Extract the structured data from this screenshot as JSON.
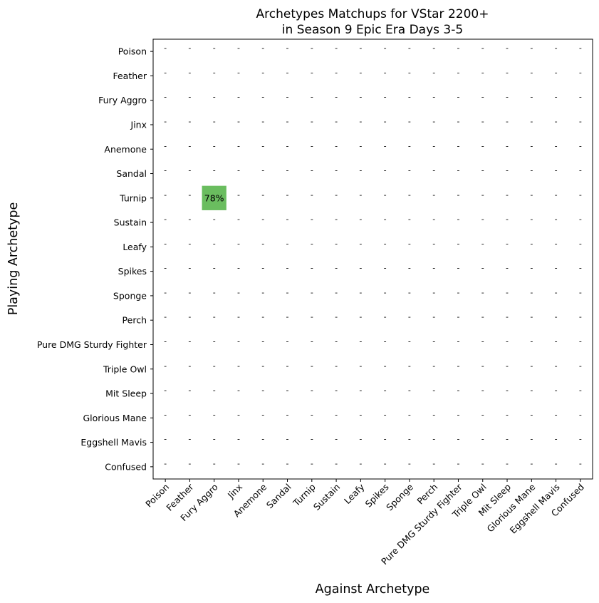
{
  "chart_data": {
    "type": "heatmap",
    "title": [
      "Archetypes Matchups for VStar 2200+",
      "in Season 9 Epic Era Days 3-5"
    ],
    "xlabel": "Against Archetype",
    "ylabel": "Playing Archetype",
    "x_categories": [
      "Poison",
      "Feather",
      "Fury Aggro",
      "Jinx",
      "Anemone",
      "Sandal",
      "Turnip",
      "Sustain",
      "Leafy",
      "Spikes",
      "Sponge",
      "Perch",
      "Pure DMG Sturdy Fighter",
      "Triple Owl",
      "Mit Sleep",
      "Glorious Mane",
      "Eggshell Mavis",
      "Confused"
    ],
    "y_categories": [
      "Poison",
      "Feather",
      "Fury Aggro",
      "Jinx",
      "Anemone",
      "Sandal",
      "Turnip",
      "Sustain",
      "Leafy",
      "Spikes",
      "Sponge",
      "Perch",
      "Pure DMG Sturdy Fighter",
      "Triple Owl",
      "Mit Sleep",
      "Glorious Mane",
      "Eggshell Mavis",
      "Confused"
    ],
    "empty_label": "-",
    "cells": [
      {
        "row": "Turnip",
        "col": "Fury Aggro",
        "value": 78,
        "label": "78%",
        "color": "#6abd5f"
      }
    ]
  }
}
